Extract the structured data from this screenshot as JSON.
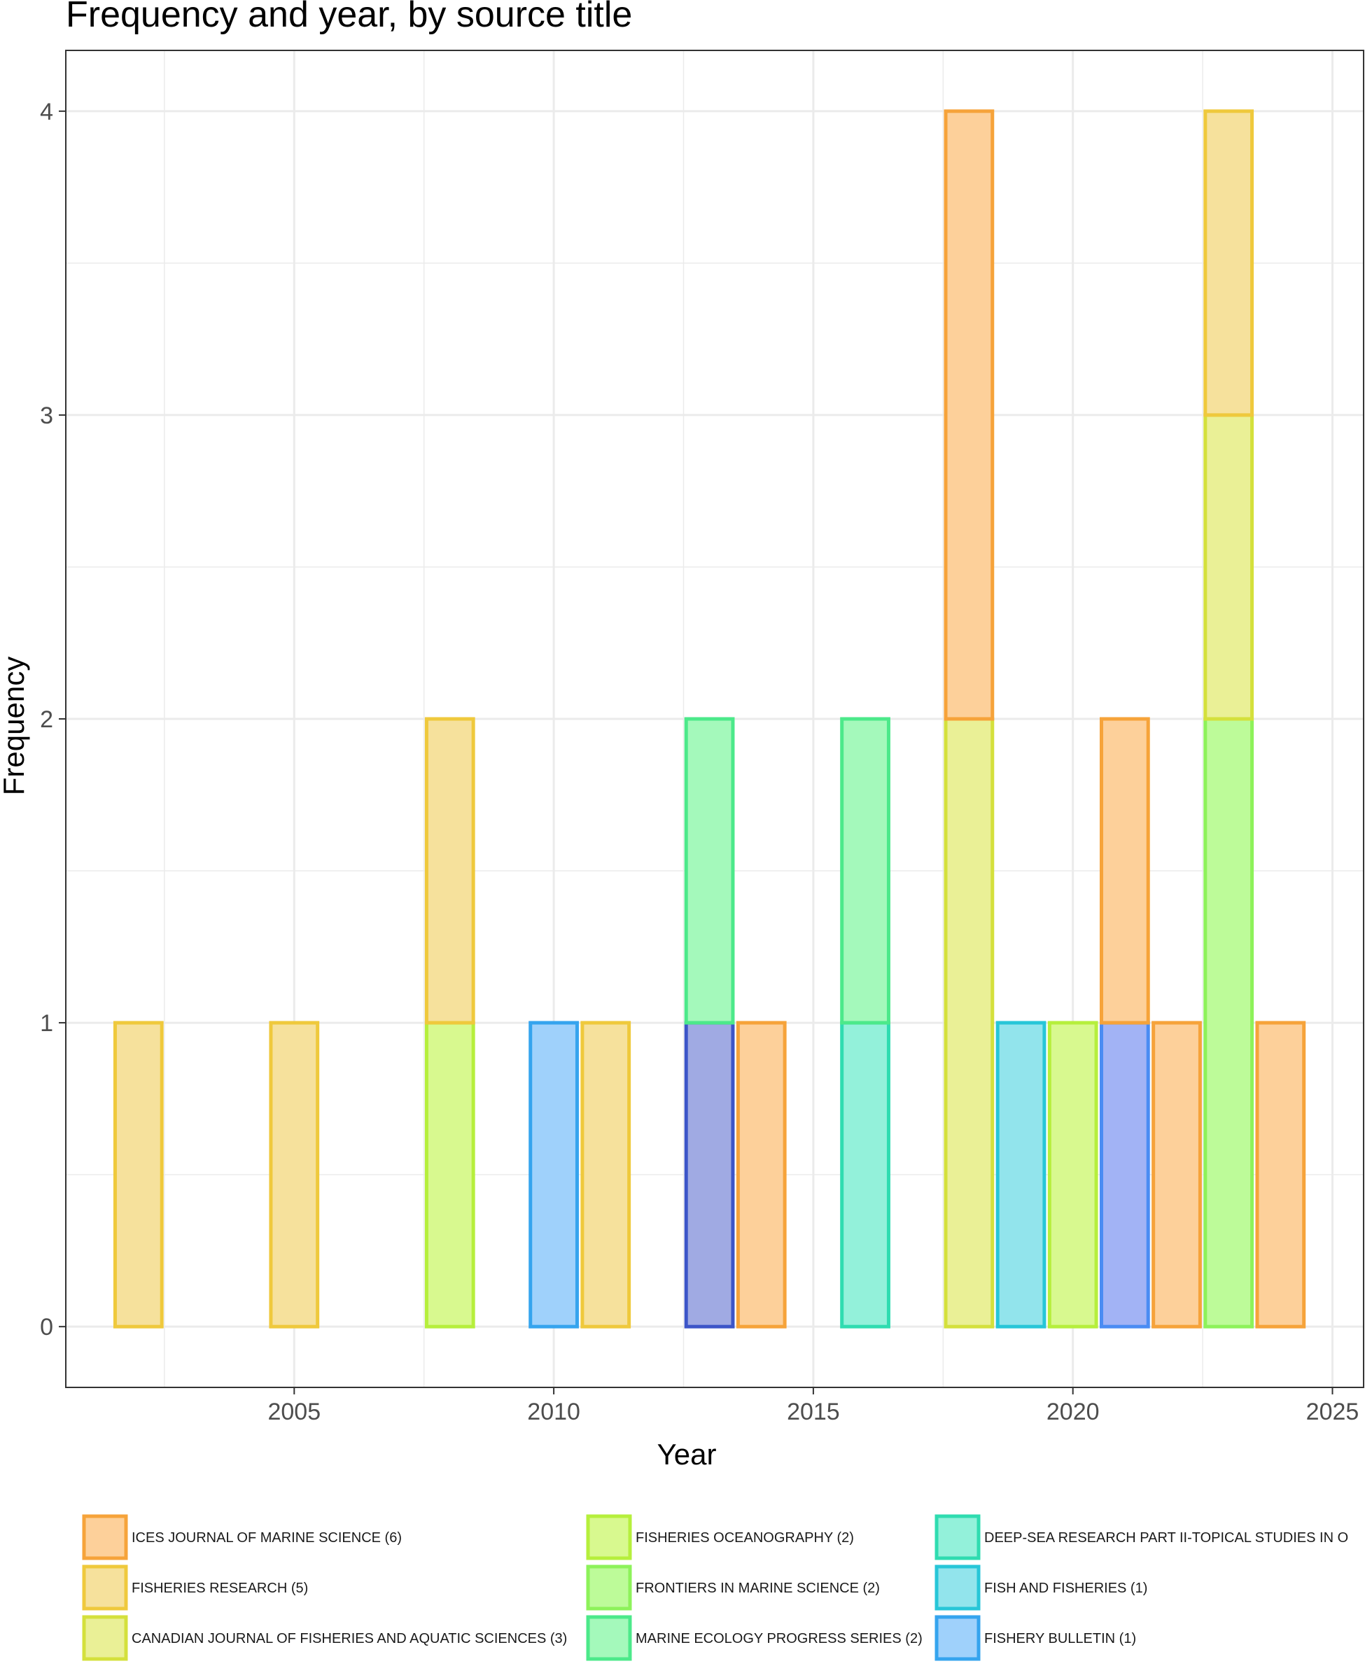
{
  "chart_data": {
    "type": "bar",
    "stacked": true,
    "title": "Frequency and year, by source title",
    "xlabel": "Year",
    "ylabel": "Frequency",
    "xlim": [
      2000.6,
      2025.6
    ],
    "ylim": [
      -0.2,
      4.2
    ],
    "x_ticks": [
      2005,
      2010,
      2015,
      2020,
      2025
    ],
    "y_ticks": [
      0,
      1,
      2,
      3,
      4
    ],
    "grid": true,
    "legend_position": "bottom",
    "series": [
      {
        "name": "ICES JOURNAL OF MARINE SCIENCE (6)",
        "fill": "#fdd09a",
        "stroke": "#f6a33a"
      },
      {
        "name": "FISHERIES RESEARCH (5)",
        "fill": "#f6e19c",
        "stroke": "#efc93c"
      },
      {
        "name": "CANADIAN JOURNAL OF FISHERIES AND AQUATIC SCIENCES (3)",
        "fill": "#eaf096",
        "stroke": "#d4e03c"
      },
      {
        "name": "FISHERIES OCEANOGRAPHY (2)",
        "fill": "#d8f98f",
        "stroke": "#b6ef3c"
      },
      {
        "name": "FRONTIERS IN MARINE SCIENCE (2)",
        "fill": "#bdfb99",
        "stroke": "#8df25a"
      },
      {
        "name": "MARINE ECOLOGY PROGRESS SERIES (2)",
        "fill": "#a4f9bb",
        "stroke": "#4ce98a"
      },
      {
        "name": "DEEP-SEA RESEARCH PART II-TOPICAL STUDIES IN O",
        "fill": "#93f1da",
        "stroke": "#2fdcb0"
      },
      {
        "name": "FISH AND FISHERIES (1)",
        "fill": "#92e4ec",
        "stroke": "#27c6d8"
      },
      {
        "name": "FISHERY BULLETIN (1)",
        "fill": "#9fd1fb",
        "stroke": "#35a4ee"
      },
      {
        "name": "",
        "fill": "#a2b3f5",
        "stroke": "#4a8cf3"
      },
      {
        "name": "",
        "fill": "#a0aae3",
        "stroke": "#3c55c8"
      }
    ],
    "bars": [
      {
        "year": 2002,
        "segments": [
          {
            "series": 1,
            "count": 1
          }
        ]
      },
      {
        "year": 2005,
        "segments": [
          {
            "series": 1,
            "count": 1
          }
        ]
      },
      {
        "year": 2008,
        "segments": [
          {
            "series": 3,
            "count": 1
          },
          {
            "series": 1,
            "count": 1
          }
        ]
      },
      {
        "year": 2010,
        "segments": [
          {
            "series": 8,
            "count": 1
          }
        ]
      },
      {
        "year": 2011,
        "segments": [
          {
            "series": 1,
            "count": 1
          }
        ]
      },
      {
        "year": 2013,
        "segments": [
          {
            "series": 10,
            "count": 1
          },
          {
            "series": 5,
            "count": 1
          }
        ]
      },
      {
        "year": 2014,
        "segments": [
          {
            "series": 0,
            "count": 1
          }
        ]
      },
      {
        "year": 2016,
        "segments": [
          {
            "series": 6,
            "count": 1
          },
          {
            "series": 5,
            "count": 1
          }
        ]
      },
      {
        "year": 2018,
        "segments": [
          {
            "series": 2,
            "count": 2
          },
          {
            "series": 0,
            "count": 2
          }
        ]
      },
      {
        "year": 2019,
        "segments": [
          {
            "series": 7,
            "count": 1
          }
        ]
      },
      {
        "year": 2020,
        "segments": [
          {
            "series": 3,
            "count": 1
          }
        ]
      },
      {
        "year": 2021,
        "segments": [
          {
            "series": 9,
            "count": 1
          },
          {
            "series": 0,
            "count": 1
          }
        ]
      },
      {
        "year": 2022,
        "segments": [
          {
            "series": 0,
            "count": 1
          }
        ]
      },
      {
        "year": 2023,
        "segments": [
          {
            "series": 4,
            "count": 2
          },
          {
            "series": 2,
            "count": 1
          },
          {
            "series": 1,
            "count": 1
          }
        ]
      },
      {
        "year": 2024,
        "segments": [
          {
            "series": 0,
            "count": 1
          }
        ]
      }
    ]
  }
}
